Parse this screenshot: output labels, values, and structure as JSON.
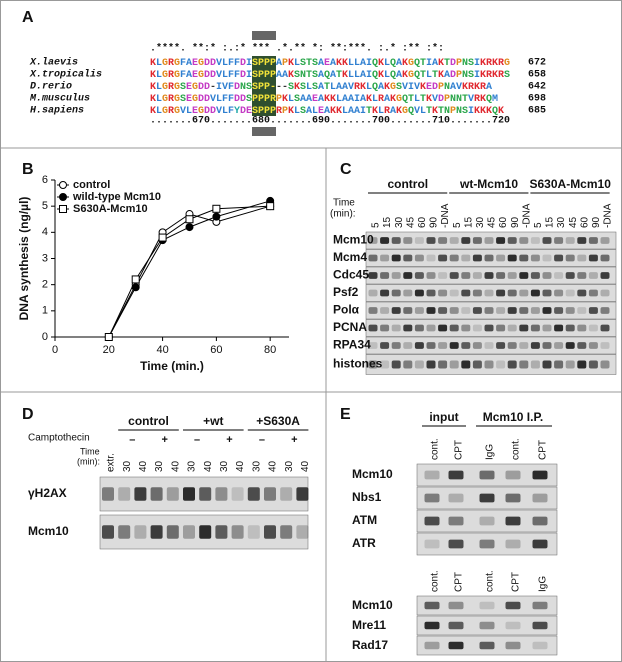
{
  "panels": {
    "a": {
      "label": "A",
      "conservation": ".****. **:* :.:* ***  .*.** *: **:***. :.* :**   :*:",
      "positions": ".......670.......680.......690.......700.......710.......720",
      "rows": [
        {
          "name": "X.laevis",
          "sequence": "KLGRGFAEGDDVLFFDISPPPAPKLSTSAEAKKLLAIQKLQAKGQTIAKTDPNSIKRKRG",
          "end": 672
        },
        {
          "name": "X.tropicalis",
          "sequence": "KLGRGFAEGDDVLFFDISPPPAAKSNTSAQATKLLAIQKLQAKGQTLTKADPNSIKRKRS",
          "end": 658
        },
        {
          "name": "D.rerio",
          "sequence": "KLGRGSEGDD-IVFDNSSPP---SKSLSATLAAVRKLQAKGSVIVKEDPNAVKRKRA",
          "end": 642
        },
        {
          "name": "M.musculus",
          "sequence": "KLGRGSEGDDVLFFDDSPPPRPKLSAAEAKKLAAIAKLRAKGQTLTKVDPNNTVRKQM",
          "end": 698
        },
        {
          "name": "H.sapiens",
          "sequence": "KLGRGVLEGDDVLFYDESPPPRPKLSALEAKKLAAITKLRAKGQVLTKTNPNSIKKKQK",
          "end": 685
        }
      ]
    },
    "c": {
      "label": "C",
      "groups": [
        "control",
        "wt-Mcm10",
        "S630A-Mcm10"
      ],
      "time_label": [
        "Time",
        "(min):"
      ],
      "lanes": [
        "5",
        "15",
        "30",
        "45",
        "60",
        "90",
        "-DNA"
      ],
      "rows": [
        "Mcm10",
        "Mcm4",
        "Cdc45",
        "Psf2",
        "Polα",
        "PCNA",
        "RPA34",
        "histones"
      ]
    },
    "d": {
      "label": "D",
      "groups": [
        "control",
        "+wt",
        "+S630A"
      ],
      "camptothecin": "Camptothecin",
      "signs": [
        "–",
        "+"
      ],
      "time_label": [
        "Time",
        "(min):"
      ],
      "extract_lane": "extr.",
      "times": [
        30,
        40
      ],
      "rows": [
        "γH2AX",
        "Mcm10"
      ]
    },
    "e": {
      "label": "E",
      "groups": [
        "input",
        "Mcm10 I.P."
      ],
      "upper_lanes": [
        "cont.",
        "CPT",
        "IgG",
        "cont.",
        "CPT"
      ],
      "upper_rows": [
        "Mcm10",
        "Nbs1",
        "ATM",
        "ATR"
      ],
      "lower_lanes": [
        "cont.",
        "CPT",
        "cont.",
        "CPT",
        "IgG"
      ],
      "lower_rows": [
        "Mcm10",
        "Mre11",
        "Rad17"
      ]
    }
  },
  "chart_data": {
    "type": "line",
    "panel_label": "B",
    "x_label": "Time (min.)",
    "y_label": "DNA synthesis (ng/µl)",
    "x": [
      20,
      30,
      40,
      50,
      60,
      80
    ],
    "series": [
      {
        "name": "control",
        "color": "#000000",
        "marker": "open-circle",
        "values": [
          0,
          2.0,
          4.0,
          4.7,
          4.4,
          5.0
        ]
      },
      {
        "name": "wild-type Mcm10",
        "color": "#000000",
        "marker": "filled-circle",
        "values": [
          0,
          1.9,
          3.7,
          4.2,
          4.6,
          5.2
        ]
      },
      {
        "name": "S630A-Mcm10",
        "color": "#000000",
        "marker": "open-square",
        "values": [
          0,
          2.2,
          3.8,
          4.5,
          4.9,
          5.0
        ]
      }
    ],
    "xlim": [
      0,
      87
    ],
    "ylim": [
      0,
      6
    ],
    "xticks": [
      0,
      20,
      40,
      60,
      80
    ],
    "yticks": [
      0,
      1,
      2,
      3,
      4,
      5,
      6
    ],
    "legend": "upper left"
  }
}
